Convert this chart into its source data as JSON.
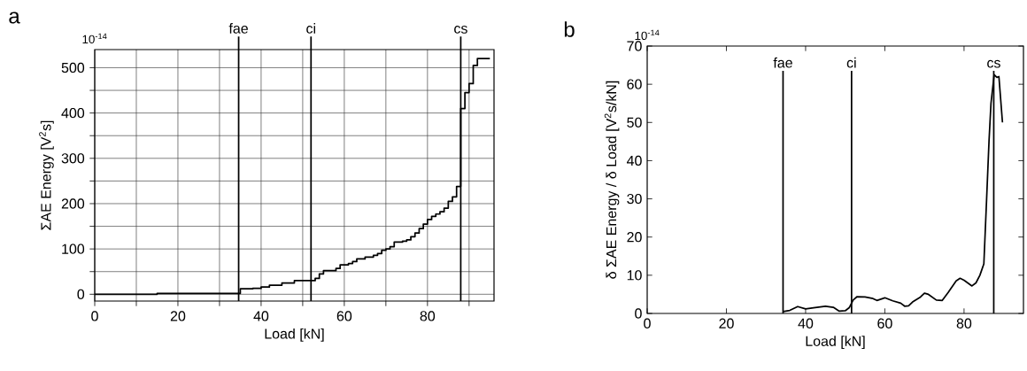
{
  "chart_data": [
    {
      "type": "step",
      "xlabel": "Load [kN]",
      "ylabel": "ΣAE Energy [V$^{2}$s]",
      "annotations": [
        "a",
        "10$^{-14}$"
      ],
      "x": [
        0,
        15,
        35,
        38,
        40,
        42,
        45,
        48,
        52,
        53,
        54,
        55,
        58,
        59,
        61,
        62,
        63,
        65,
        67,
        68,
        69,
        70,
        71,
        72,
        74,
        75,
        76,
        77,
        78,
        79,
        80,
        81,
        82,
        83,
        84,
        85,
        86,
        87,
        88,
        89,
        90,
        91,
        92,
        95
      ],
      "values": [
        0,
        2,
        12,
        13,
        16,
        20,
        25,
        30,
        30,
        35,
        45,
        52,
        57,
        65,
        68,
        72,
        78,
        82,
        86,
        90,
        97,
        100,
        105,
        115,
        117,
        120,
        127,
        135,
        145,
        155,
        165,
        172,
        177,
        182,
        190,
        205,
        215,
        238,
        410,
        445,
        465,
        505,
        520,
        520
      ],
      "color": "#000000",
      "xlim": [
        0,
        96
      ],
      "ylim": [
        -15,
        540
      ],
      "xticks": [
        0,
        {
          "value": 10,
          "label": null
        },
        20,
        {
          "value": 30,
          "label": null
        },
        40,
        {
          "value": 50,
          "label": null
        },
        60,
        {
          "value": 70,
          "label": null
        },
        80,
        {
          "value": 90,
          "label": null
        }
      ],
      "yticks": [
        0,
        {
          "value": 50,
          "label": null
        },
        100,
        {
          "value": 150,
          "label": null
        },
        200,
        {
          "value": 250,
          "label": null
        },
        300,
        {
          "value": 350,
          "label": null
        },
        400,
        {
          "value": 450,
          "label": null
        },
        500
      ],
      "grid": true,
      "ref_lines": [
        {
          "axis": "x",
          "value": 34.6,
          "label": "fae"
        },
        {
          "axis": "x",
          "value": 52,
          "label": "ci"
        },
        {
          "axis": "x",
          "value": 88,
          "label": "cs"
        }
      ]
    },
    {
      "type": "line",
      "xlabel": "Load [kN]",
      "ylabel": "δ ΣAE Energy / δ Load [V$^{2}$s/kN]",
      "annotations": [
        "b",
        "10$^{-14}$"
      ],
      "x": [
        34.3,
        36,
        38,
        40,
        42,
        45,
        47,
        48.5,
        50,
        51,
        52,
        53,
        55,
        57,
        58,
        60,
        62,
        64,
        65,
        66,
        67,
        69,
        70,
        71,
        73,
        74.5,
        76,
        78,
        79,
        80,
        82,
        83,
        84,
        85,
        85.7,
        86.3,
        86.8,
        87.6,
        88.3,
        88.8,
        89.7
      ],
      "values": [
        0.5,
        0.8,
        1.8,
        1.2,
        1.5,
        1.9,
        1.6,
        0.6,
        0.7,
        1.5,
        3.5,
        4.4,
        4.3,
        3.9,
        3.4,
        4.1,
        3.3,
        2.7,
        1.9,
        2.0,
        3.0,
        4.3,
        5.3,
        5.0,
        3.5,
        3.4,
        5.5,
        8.5,
        9.2,
        8.7,
        7.2,
        8.0,
        10.0,
        13,
        30,
        45,
        55,
        62.5,
        61.8,
        62,
        50
      ],
      "color": "#000000",
      "xlim": [
        0,
        95
      ],
      "ylim": [
        0,
        70
      ],
      "xticks": [
        0,
        20,
        40,
        60,
        80
      ],
      "yticks": [
        0,
        10,
        20,
        30,
        40,
        50,
        60,
        70
      ],
      "ref_lines": [
        {
          "axis": "x",
          "value": 34.3,
          "label": "fae"
        },
        {
          "axis": "x",
          "value": 51.6,
          "label": "ci"
        },
        {
          "axis": "x",
          "value": 87.5,
          "label": "cs"
        }
      ]
    }
  ]
}
